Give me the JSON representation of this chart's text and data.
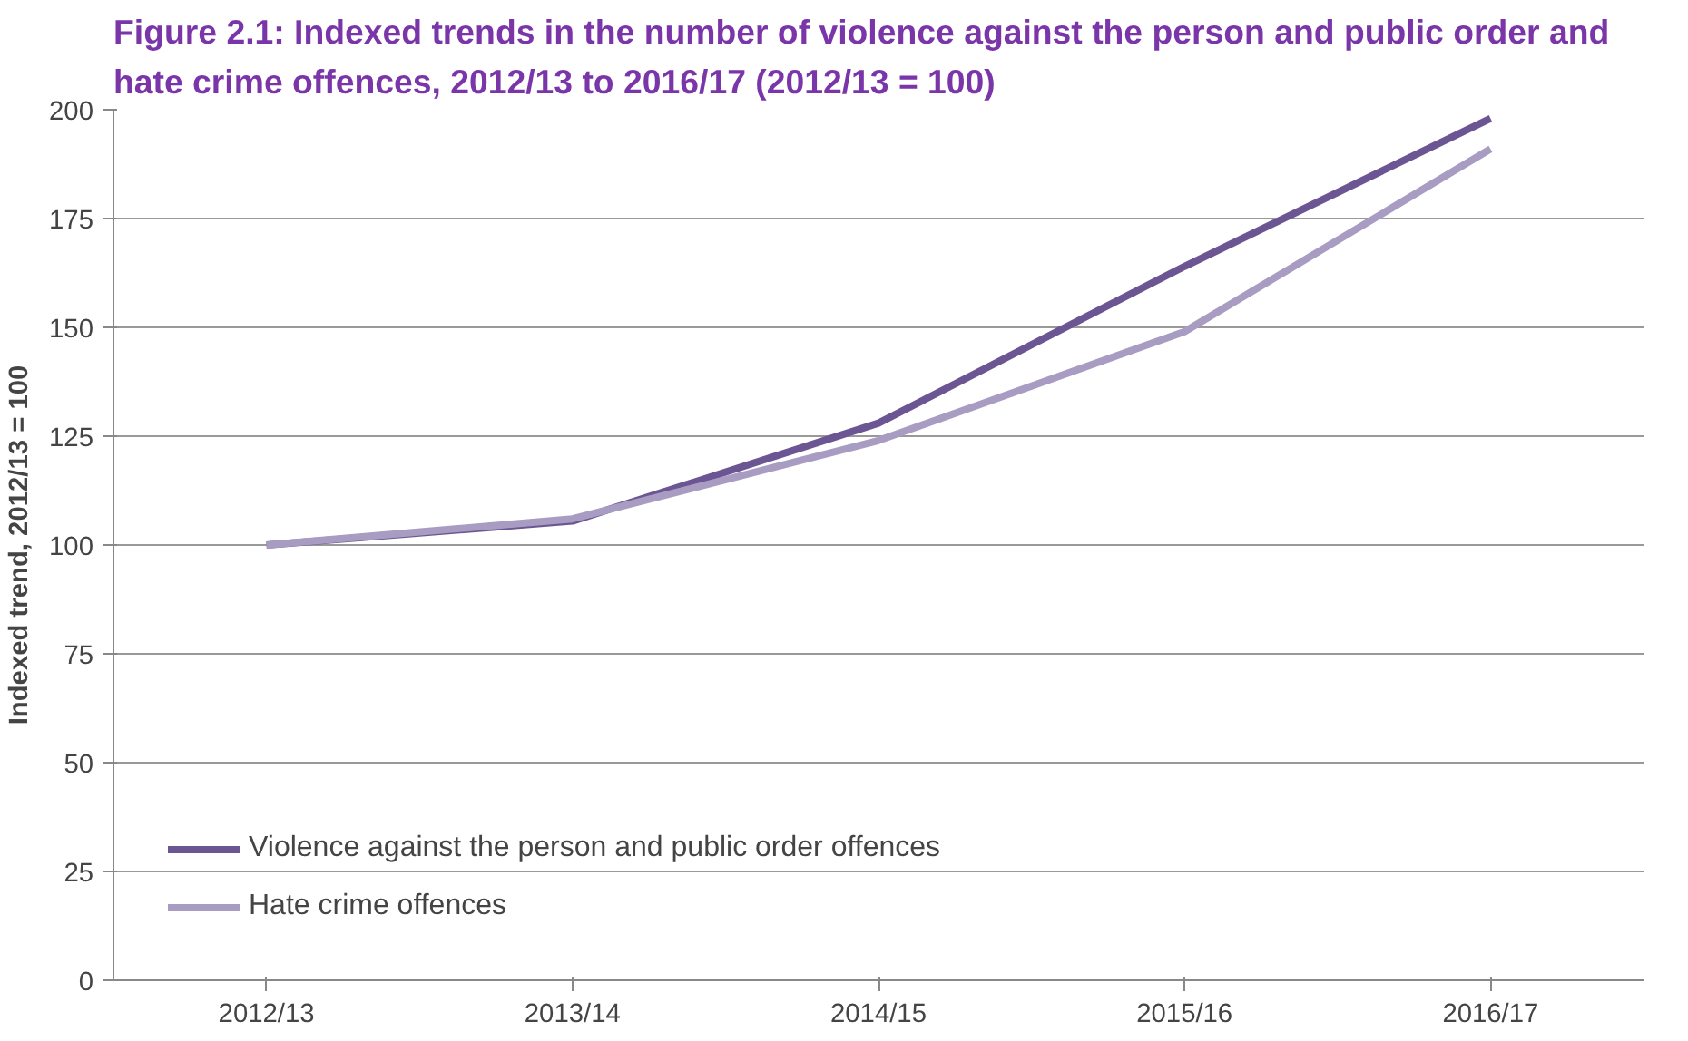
{
  "chart_data": {
    "type": "line",
    "title": "Figure 2.1: Indexed trends in the number of violence against the person and public order and hate crime offences, 2012/13 to 2016/17 (2012/13 = 100)",
    "ylabel": "Indexed trend, 2012/13 = 100",
    "categories": [
      "2012/13",
      "2013/14",
      "2014/15",
      "2015/16",
      "2016/17"
    ],
    "series": [
      {
        "name": "Violence against the person and public order offences",
        "color": "#6b5592",
        "values": [
          100,
          105.5,
          128,
          164,
          198
        ]
      },
      {
        "name": "Hate crime offences",
        "color": "#a99cc3",
        "values": [
          100,
          106,
          124,
          149,
          191
        ]
      }
    ],
    "ylim": [
      0,
      200
    ],
    "yticks": [
      0,
      25,
      50,
      75,
      100,
      125,
      150,
      175,
      200
    ],
    "grid": "y",
    "legend": "bottom left",
    "marker": "none",
    "line_style": "solid"
  }
}
